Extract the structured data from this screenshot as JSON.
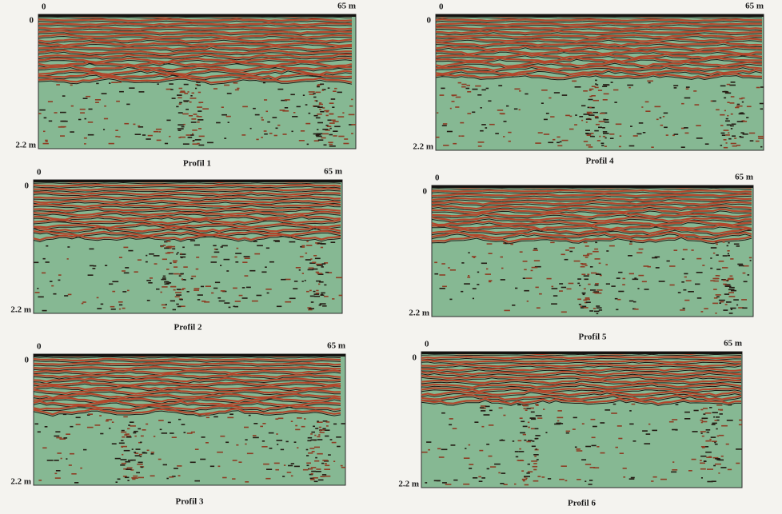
{
  "panels": [
    {
      "caption": "Profil 1",
      "x_start": "0",
      "x_end": "65 m",
      "depth_top": "0",
      "depth_bottom": "2.2 m"
    },
    {
      "caption": "Profil 2",
      "x_start": "0",
      "x_end": "65 m",
      "depth_top": "0",
      "depth_bottom": "2.2 m"
    },
    {
      "caption": "Profil 3",
      "x_start": "0",
      "x_end": "65 m",
      "depth_top": "0",
      "depth_bottom": "2.2 m"
    },
    {
      "caption": "Profil 4",
      "x_start": "0",
      "x_end": "65 m",
      "depth_top": "0",
      "depth_bottom": "2.2 m"
    },
    {
      "caption": "Profil 5",
      "x_start": "0",
      "x_end": "65 m",
      "depth_top": "0",
      "depth_bottom": "2.2 m"
    },
    {
      "caption": "Profil 6",
      "x_start": "0",
      "x_end": "65 m",
      "depth_top": "0",
      "depth_bottom": "2.2 m"
    }
  ]
}
